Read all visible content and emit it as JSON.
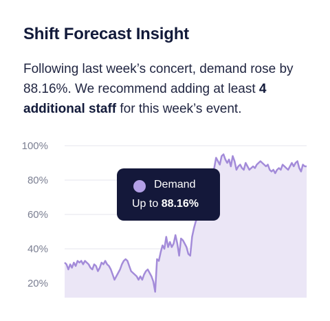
{
  "card": {
    "title": "Shift Forecast Insight",
    "desc_text_1": "Following last week’s concert, demand rose by 88.16%. We recommend adding at least ",
    "desc_bold": "4 additional staff",
    "desc_text_2": " for this week’s event."
  },
  "tooltip": {
    "series_name": "Demand",
    "prefix": "Up to ",
    "value": "88.16%"
  },
  "chart_data": {
    "type": "area",
    "series": [
      {
        "name": "Demand",
        "color": "#a38bd9",
        "fill": "#ebe6f6",
        "values": [
          32,
          31,
          28,
          31,
          29,
          32,
          30,
          33,
          32,
          33,
          31,
          33,
          32,
          31,
          29,
          28,
          31,
          30,
          27,
          29,
          32,
          31,
          33,
          31,
          30,
          28,
          25,
          22,
          24,
          26,
          28,
          31,
          33,
          34,
          33,
          30,
          27,
          26,
          25,
          24,
          22,
          24,
          22,
          25,
          27,
          28,
          26,
          24,
          21,
          15,
          34,
          33,
          38,
          42,
          40,
          47,
          41,
          44,
          41,
          43,
          48,
          43,
          36,
          46,
          45,
          43,
          41,
          37,
          36,
          47,
          52,
          56,
          58,
          60,
          62,
          70,
          72,
          76,
          80,
          82,
          85,
          87,
          93,
          91,
          89,
          94,
          95,
          92,
          90,
          92,
          88,
          94,
          91,
          86,
          88,
          89,
          87,
          86,
          90,
          88,
          86,
          87,
          88,
          87,
          89,
          90,
          91,
          90,
          89,
          88,
          89,
          86,
          85,
          86,
          84,
          86,
          87,
          86,
          89,
          88,
          87,
          86,
          88,
          90,
          88,
          90,
          91,
          87,
          85,
          89,
          88,
          88
        ]
      }
    ],
    "yticks": [
      "20%",
      "40%",
      "60%",
      "80%",
      "100%"
    ],
    "ylim": [
      12,
      100
    ],
    "grid": true
  }
}
